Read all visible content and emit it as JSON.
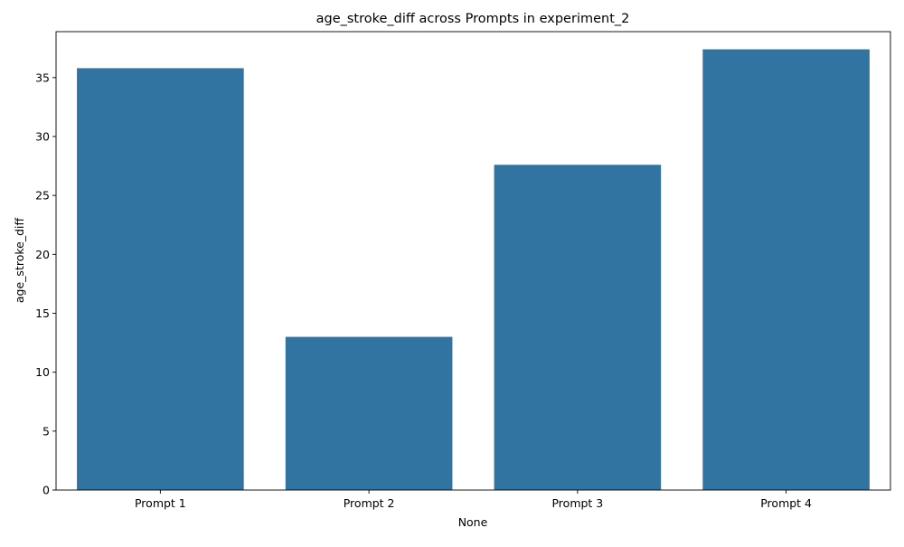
{
  "chart_data": {
    "type": "bar",
    "title": "age_stroke_diff across Prompts in experiment_2",
    "xlabel": "None",
    "ylabel": "age_stroke_diff",
    "categories": [
      "Prompt 1",
      "Prompt 2",
      "Prompt 3",
      "Prompt 4"
    ],
    "values": [
      35.8,
      13.0,
      27.6,
      37.4
    ],
    "ylim": [
      0,
      38.9
    ],
    "yticks": [
      0,
      5,
      10,
      15,
      20,
      25,
      30,
      35
    ],
    "grid": false,
    "legend": "none",
    "bar_color": "#3274a1"
  }
}
